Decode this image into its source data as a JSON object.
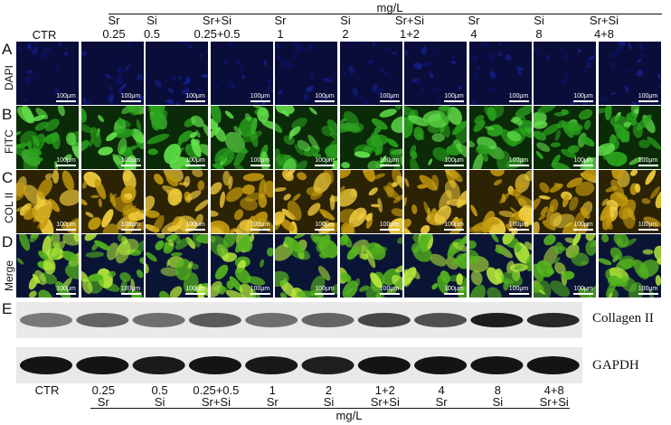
{
  "header": {
    "unit_top": "mg/L",
    "ctr": "CTR",
    "columns": [
      {
        "line1": "Sr",
        "line2": "0.25"
      },
      {
        "line1": "Si",
        "line2": "0.5"
      },
      {
        "line1": "Sr+Si",
        "line2": "0.25+0.5"
      },
      {
        "line1": "Sr",
        "line2": "1"
      },
      {
        "line1": "Si",
        "line2": "2"
      },
      {
        "line1": "Sr+Si",
        "line2": "1+2"
      },
      {
        "line1": "Sr",
        "line2": "4"
      },
      {
        "line1": "Si",
        "line2": "8"
      },
      {
        "line1": "Sr+Si",
        "line2": "4+8"
      }
    ]
  },
  "rows": [
    {
      "letter": "A",
      "label": "DAPI",
      "base": "#0a0d3a",
      "cell": "#0b1260",
      "hi": "#14208a"
    },
    {
      "letter": "B",
      "label": "FITC",
      "base": "#0a2a08",
      "cell": "#2aa31d",
      "hi": "#62e04a"
    },
    {
      "letter": "C",
      "label": "COL II",
      "base": "#2c2204",
      "cell": "#c49a0e",
      "hi": "#f0cc3c"
    },
    {
      "letter": "D",
      "label": "Merge",
      "base": "#0a1535",
      "cell": "#55b51e",
      "hi": "#b4e83a"
    }
  ],
  "scalebar_label": "100μm",
  "blot": {
    "letter": "E",
    "band1_label": "Collagen II",
    "band2_label": "GAPDH",
    "collagen_intensity": [
      0.45,
      0.55,
      0.5,
      0.6,
      0.5,
      0.55,
      0.7,
      0.65,
      0.9,
      0.85
    ],
    "gapdh_intensity": [
      0.95,
      0.95,
      0.92,
      0.95,
      0.93,
      0.9,
      0.95,
      0.95,
      0.95,
      0.95
    ]
  },
  "bottom": {
    "unit_bottom": "mg/L",
    "columns": [
      {
        "line1": "CTR",
        "line2": ""
      },
      {
        "line1": "0.25",
        "line2": "Sr"
      },
      {
        "line1": "0.5",
        "line2": "Si"
      },
      {
        "line1": "0.25+0.5",
        "line2": "Sr+Si"
      },
      {
        "line1": "1",
        "line2": "Sr"
      },
      {
        "line1": "2",
        "line2": "Si"
      },
      {
        "line1": "1+2",
        "line2": "Sr+Si"
      },
      {
        "line1": "4",
        "line2": "Sr"
      },
      {
        "line1": "8",
        "line2": "Si"
      },
      {
        "line1": "4+8",
        "line2": "Sr+Si"
      }
    ]
  }
}
